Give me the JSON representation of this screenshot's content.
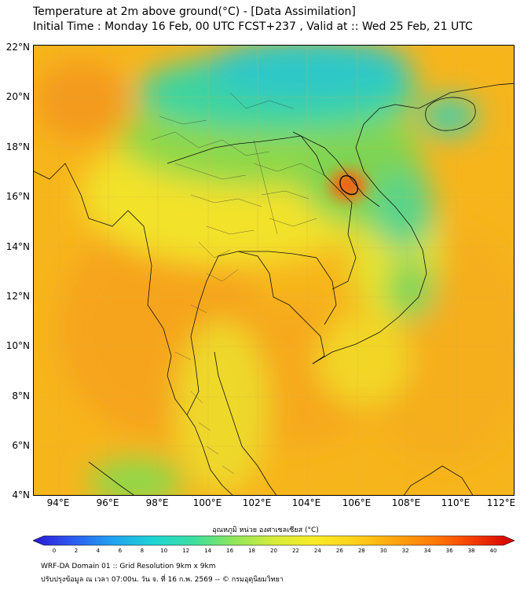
{
  "title_line1": "Temperature at 2m above ground(°C) - [Data Assimilation]",
  "title_line2": "Initial Time : Monday 16 Feb, 00 UTC FCST+237 , Valid at :: Wed 25 Feb, 21 UTC",
  "lat_labels": [
    "22°N",
    "20°N",
    "18°N",
    "16°N",
    "14°N",
    "12°N",
    "10°N",
    "8°N",
    "6°N",
    "4°N"
  ],
  "lon_labels": [
    "94°E",
    "96°E",
    "98°E",
    "100°E",
    "102°E",
    "104°E",
    "106°E",
    "108°E",
    "110°E",
    "112°E"
  ],
  "colorbar": {
    "label": "อุณหภูมิ หน่วย องศาเซลเซียส (°C)",
    "ticks": [
      "0",
      "2",
      "4",
      "6",
      "8",
      "10",
      "12",
      "14",
      "16",
      "18",
      "20",
      "22",
      "24",
      "26",
      "28",
      "30",
      "32",
      "34",
      "36",
      "38",
      "40"
    ],
    "min": 0,
    "max": 40,
    "colors": [
      "#2b17d6",
      "#2c5cf0",
      "#21a3f0",
      "#1fd4d4",
      "#3ae0a0",
      "#8ee65a",
      "#d6ec3a",
      "#f8ec26",
      "#ffd21a",
      "#ffa60e",
      "#ff7a06",
      "#f43a04",
      "#d20000"
    ]
  },
  "footer_line1": "WRF-DA Domain 01 :: Grid Resolution 9km x 9km",
  "footer_line2": "ปรับปรุงข้อมูล ณ เวลา 07:00น. วัน จ. ที่ 16 ก.พ. 2569 -- © กรมอุตุนิยมวิทยา",
  "field_colors": {
    "base": "#f7b51c",
    "warm": "#f49a1a",
    "yellow": "#f2e22a",
    "green": "#8ed84a",
    "teal": "#3ed4a0",
    "cyan": "#2ec8c8",
    "hot": "#e8401a"
  }
}
